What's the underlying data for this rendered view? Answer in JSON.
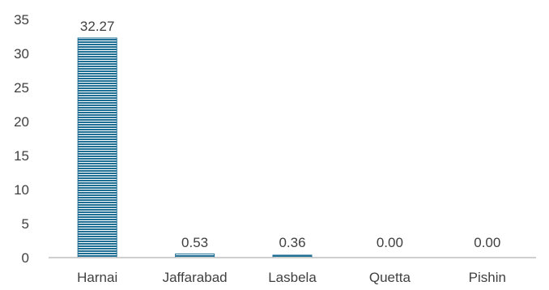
{
  "chart_data": {
    "type": "bar",
    "categories": [
      "Harnai",
      "Jaffarabad",
      "Lasbela",
      "Quetta",
      "Pishin"
    ],
    "values": [
      32.27,
      0.53,
      0.36,
      0.0,
      0.0
    ],
    "data_labels": [
      "32.27",
      "0.53",
      "0.36",
      "0.00",
      "0.00"
    ],
    "y_ticks": [
      "0",
      "5",
      "10",
      "15",
      "20",
      "25",
      "30",
      "35"
    ],
    "ylim": [
      0,
      35
    ],
    "grid": false,
    "bar_color": "#1f6f95",
    "bar_pattern": "horizontal-stripes",
    "axis_color": "#bfbfbf"
  }
}
